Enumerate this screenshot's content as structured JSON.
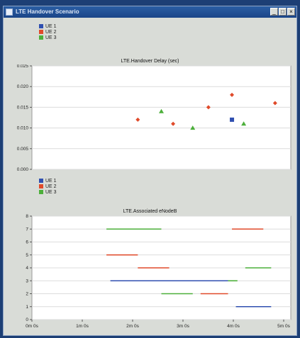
{
  "window": {
    "title": "LTE Handover Scenario",
    "controls": [
      "_",
      "□",
      "×"
    ]
  },
  "colors": {
    "ue1": "#2f4fb0",
    "ue2": "#e04a2a",
    "ue3": "#4caf3a",
    "plot_bg": "#ffffff",
    "window_bg": "#d9dcd7"
  },
  "legend_top": [
    {
      "label": "UE 1",
      "color": "#2f4fb0"
    },
    {
      "label": "UE 2",
      "color": "#e04a2a"
    },
    {
      "label": "UE 3",
      "color": "#4caf3a"
    }
  ],
  "legend_bottom": [
    {
      "label": "UE 1",
      "color": "#2f4fb0"
    },
    {
      "label": "UE 2",
      "color": "#e04a2a"
    },
    {
      "label": "UE 3",
      "color": "#4caf3a"
    }
  ],
  "chart_data": [
    {
      "type": "scatter",
      "title": "LTE.Handover Delay (sec)",
      "ylim": [
        0,
        0.025
      ],
      "yticks": [
        "0.025",
        "0.020",
        "0.015",
        "0.010",
        "0.005",
        "0.000"
      ],
      "xlim": [
        0,
        330
      ],
      "series": [
        {
          "name": "UE 1",
          "color": "#2f4fb0",
          "marker": "square",
          "points": [
            [
              255,
              0.012
            ]
          ]
        },
        {
          "name": "UE 2",
          "color": "#e04a2a",
          "marker": "diamond",
          "points": [
            [
              135,
              0.012
            ],
            [
              180,
              0.011
            ],
            [
              225,
              0.015
            ],
            [
              255,
              0.018
            ],
            [
              310,
              0.016
            ]
          ]
        },
        {
          "name": "UE 3",
          "color": "#4caf3a",
          "marker": "triangle",
          "points": [
            [
              165,
              0.014
            ],
            [
              205,
              0.01
            ],
            [
              270,
              0.011
            ]
          ]
        }
      ]
    },
    {
      "type": "line",
      "title": "LTE.Associated eNodeB",
      "ylim": [
        0,
        8
      ],
      "yticks": [
        "8",
        "7",
        "6",
        "5",
        "4",
        "3",
        "2",
        "1",
        "0"
      ],
      "xlim": [
        0,
        330
      ],
      "xticks": [
        "0m 0s",
        "1m 0s",
        "2m 0s",
        "3m 0s",
        "4m 0s",
        "5m 0s"
      ],
      "segments": [
        {
          "name": "UE 1",
          "color": "#2f4fb0",
          "y": 3,
          "x0": 100,
          "x1": 250
        },
        {
          "name": "UE 1",
          "color": "#2f4fb0",
          "y": 1,
          "x0": 260,
          "x1": 305
        },
        {
          "name": "UE 2",
          "color": "#e04a2a",
          "y": 5,
          "x0": 95,
          "x1": 135
        },
        {
          "name": "UE 2",
          "color": "#e04a2a",
          "y": 4,
          "x0": 135,
          "x1": 175
        },
        {
          "name": "UE 2",
          "color": "#e04a2a",
          "y": 2,
          "x0": 215,
          "x1": 250
        },
        {
          "name": "UE 2",
          "color": "#e04a2a",
          "y": 7,
          "x0": 255,
          "x1": 295
        },
        {
          "name": "UE 3",
          "color": "#4caf3a",
          "y": 7,
          "x0": 95,
          "x1": 165
        },
        {
          "name": "UE 3",
          "color": "#4caf3a",
          "y": 2,
          "x0": 165,
          "x1": 205
        },
        {
          "name": "UE 3",
          "color": "#4caf3a",
          "y": 3,
          "x0": 250,
          "x1": 262
        },
        {
          "name": "UE 3",
          "color": "#4caf3a",
          "y": 4,
          "x0": 272,
          "x1": 305
        }
      ]
    }
  ]
}
